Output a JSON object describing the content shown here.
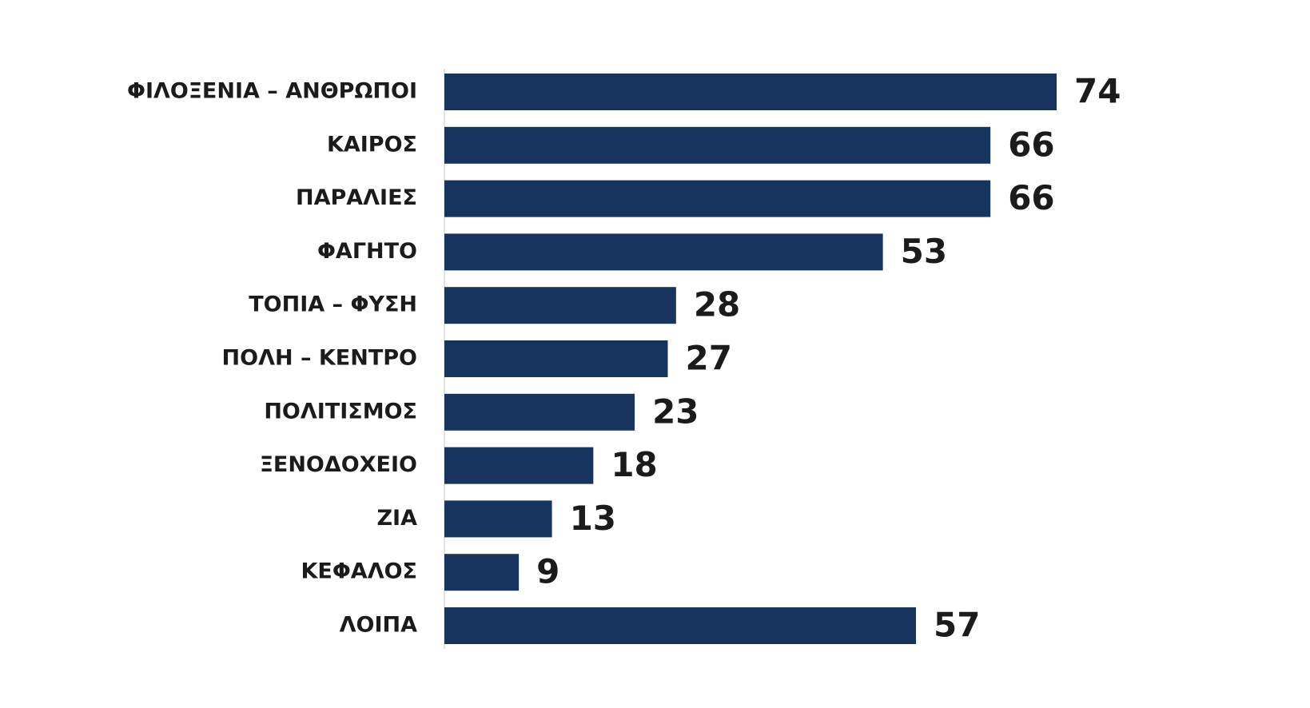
{
  "chart_data": {
    "type": "bar",
    "orientation": "horizontal",
    "categories": [
      "ΦΙΛΟΞΕΝΙΑ – ΑΝΘΡΩΠΟΙ",
      "ΚΑΙΡΟΣ",
      "ΠΑΡΑΛΙΕΣ",
      "ΦΑΓΗΤΟ",
      "ΤΟΠΙΑ – ΦΥΣΗ",
      "ΠΟΛΗ – ΚΕΝΤΡΟ",
      "ΠΟΛΙΤΙΣΜΟΣ",
      "ΞΕΝΟΔΟΧΕΙΟ",
      "ΖΙΑ",
      "ΚΕΦΑΛΟΣ",
      "ΛΟΙΠΑ"
    ],
    "values": [
      74,
      66,
      66,
      53,
      28,
      27,
      23,
      18,
      13,
      9,
      57
    ],
    "value_labels": [
      "74",
      "66",
      "66",
      "53",
      "28",
      "27",
      "23",
      "18",
      "13",
      "9",
      "57"
    ],
    "xlim": [
      0,
      74
    ],
    "bar_color": "#17345e",
    "grid": false,
    "legend": "none",
    "title": "",
    "xlabel": "",
    "ylabel": ""
  }
}
